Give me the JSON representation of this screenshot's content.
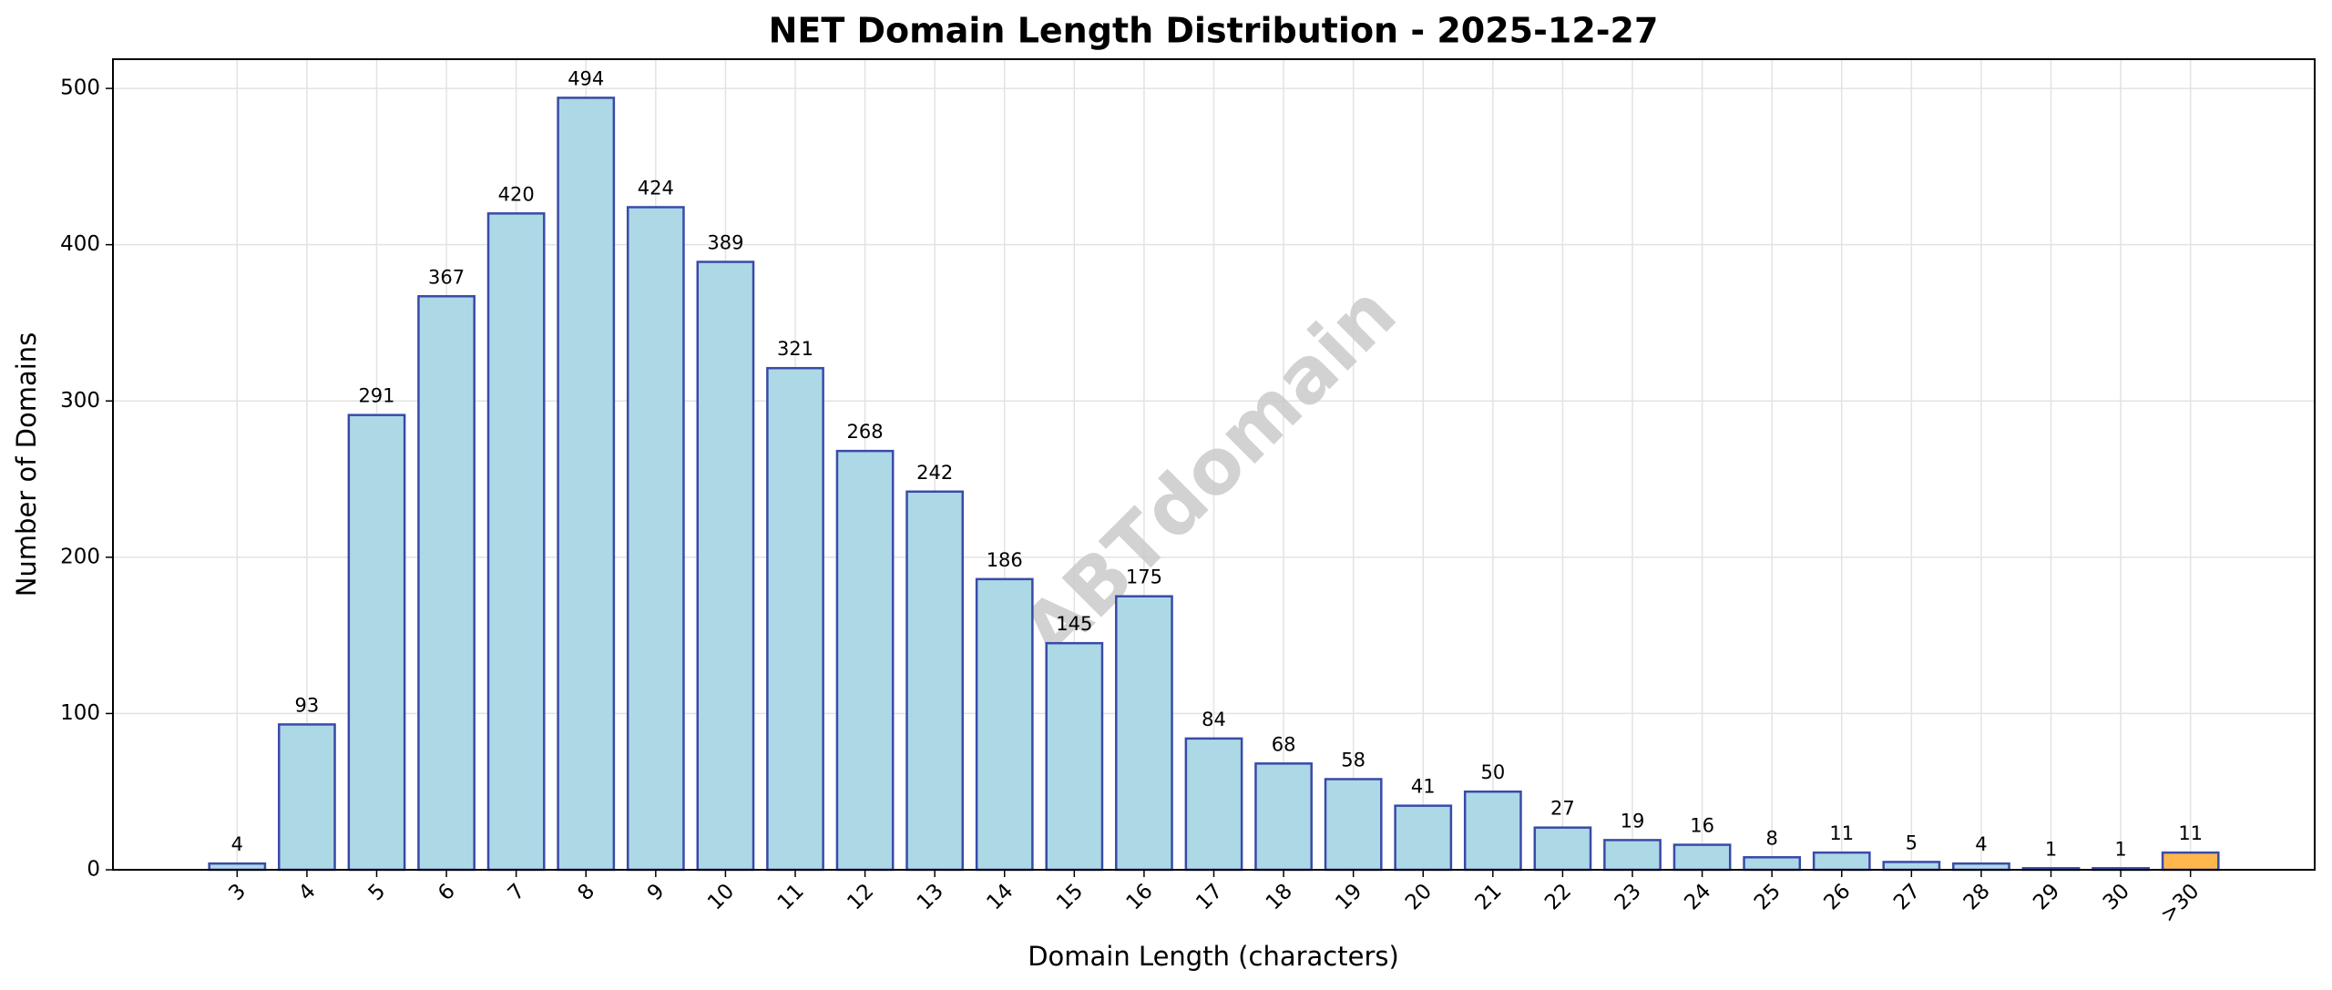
{
  "chart_data": {
    "type": "bar",
    "title": "NET Domain Length Distribution - 2025-12-27",
    "xlabel": "Domain Length (characters)",
    "ylabel": "Number of Domains",
    "watermark": "ABTdomain",
    "categories": [
      "3",
      "4",
      "5",
      "6",
      "7",
      "8",
      "9",
      "10",
      "11",
      "12",
      "13",
      "14",
      "15",
      "16",
      "17",
      "18",
      "19",
      "20",
      "21",
      "22",
      "23",
      "24",
      "25",
      "26",
      "27",
      "28",
      "29",
      "30",
      ">30"
    ],
    "values": [
      4,
      93,
      291,
      367,
      420,
      494,
      424,
      389,
      321,
      268,
      242,
      186,
      145,
      175,
      84,
      68,
      58,
      41,
      50,
      27,
      19,
      16,
      8,
      11,
      5,
      4,
      1,
      1,
      11
    ],
    "colors": [
      "#add8e6",
      "#add8e6",
      "#add8e6",
      "#add8e6",
      "#add8e6",
      "#add8e6",
      "#add8e6",
      "#add8e6",
      "#add8e6",
      "#add8e6",
      "#add8e6",
      "#add8e6",
      "#add8e6",
      "#add8e6",
      "#add8e6",
      "#add8e6",
      "#add8e6",
      "#add8e6",
      "#add8e6",
      "#add8e6",
      "#add8e6",
      "#add8e6",
      "#add8e6",
      "#add8e6",
      "#add8e6",
      "#add8e6",
      "#add8e6",
      "#add8e6",
      "#ffb74d"
    ],
    "edgecolor": "#3a4aa8",
    "ylim": [
      0,
      518.7
    ],
    "yticks": [
      0,
      100,
      200,
      300,
      400,
      500
    ],
    "grid": true
  }
}
